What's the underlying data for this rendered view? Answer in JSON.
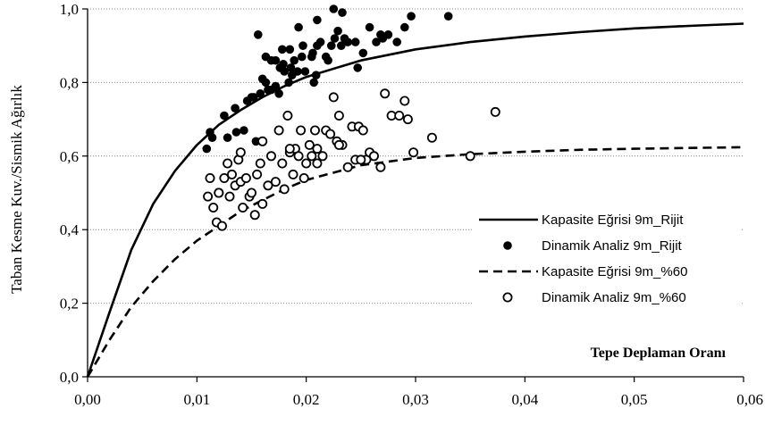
{
  "chart_data": {
    "type": "scatter",
    "title": "",
    "xlabel": "Tepe Deplaman Oranı",
    "ylabel": "Taban Kesme Kuv./Sismik Ağırlık",
    "xlim": [
      0,
      0.06
    ],
    "ylim": [
      0,
      1.0
    ],
    "x_ticks": [
      "0,00",
      "0,01",
      "0,02",
      "0,03",
      "0,04",
      "0,05",
      "0,06"
    ],
    "x_tick_values": [
      0,
      0.01,
      0.02,
      0.03,
      0.04,
      0.05,
      0.06
    ],
    "y_ticks": [
      "0,0",
      "0,2",
      "0,4",
      "0,6",
      "0,8",
      "1,0"
    ],
    "y_tick_values": [
      0,
      0.2,
      0.4,
      0.6,
      0.8,
      1.0
    ],
    "grid": "horizontal-dotted",
    "legend_position": "bottom-right",
    "series": [
      {
        "name": "Kapasite Eğrisi 9m_Rijit",
        "style": "solid-line",
        "color": "#000000",
        "x": [
          0,
          0.002,
          0.004,
          0.006,
          0.008,
          0.01,
          0.012,
          0.014,
          0.016,
          0.018,
          0.02,
          0.025,
          0.03,
          0.035,
          0.04,
          0.045,
          0.05,
          0.055,
          0.06
        ],
        "y": [
          0,
          0.175,
          0.345,
          0.47,
          0.56,
          0.63,
          0.685,
          0.725,
          0.76,
          0.79,
          0.815,
          0.86,
          0.89,
          0.91,
          0.925,
          0.937,
          0.947,
          0.954,
          0.96
        ]
      },
      {
        "name": "Dinamik Analiz 9m_Rijit",
        "style": "filled-marker",
        "color": "#000000",
        "x": [
          0.0109,
          0.0112,
          0.0125,
          0.0136,
          0.0135,
          0.0146,
          0.0154,
          0.0156,
          0.016,
          0.0163,
          0.0168,
          0.0172,
          0.0175,
          0.0179,
          0.018,
          0.0185,
          0.0187,
          0.0189,
          0.0192,
          0.0196,
          0.0197,
          0.0205,
          0.0207,
          0.021,
          0.0213,
          0.022,
          0.0223,
          0.0225,
          0.0232,
          0.0233,
          0.0238,
          0.0245,
          0.0258,
          0.0264,
          0.027,
          0.0275,
          0.0283,
          0.029,
          0.0296,
          0.033,
          0.0152,
          0.0163,
          0.0168,
          0.0176,
          0.0186,
          0.0199,
          0.0206,
          0.021,
          0.0218,
          0.0229,
          0.0235,
          0.0247,
          0.0252,
          0.0268,
          0.0165,
          0.015,
          0.0128,
          0.0114,
          0.0143,
          0.0172,
          0.0193,
          0.0158,
          0.0184,
          0.0226,
          0.0209,
          0.0178
        ],
        "y": [
          0.62,
          0.665,
          0.71,
          0.665,
          0.73,
          0.75,
          0.64,
          0.93,
          0.81,
          0.87,
          0.86,
          0.79,
          0.77,
          0.85,
          0.83,
          0.89,
          0.82,
          0.86,
          0.83,
          0.87,
          0.9,
          0.87,
          0.8,
          0.97,
          0.91,
          0.86,
          0.9,
          1.0,
          0.9,
          0.99,
          0.91,
          0.91,
          0.95,
          0.91,
          0.92,
          0.93,
          0.91,
          0.95,
          0.98,
          0.98,
          0.76,
          0.8,
          0.78,
          0.84,
          0.84,
          0.83,
          0.88,
          0.9,
          0.87,
          0.94,
          0.92,
          0.84,
          0.88,
          0.93,
          0.78,
          0.76,
          0.65,
          0.65,
          0.67,
          0.86,
          0.95,
          0.77,
          0.8,
          0.92,
          0.82,
          0.89
        ]
      },
      {
        "name": "Kapasite Eğrisi 9m_%60",
        "style": "dashed-line",
        "color": "#000000",
        "x": [
          0,
          0.002,
          0.004,
          0.006,
          0.008,
          0.01,
          0.012,
          0.014,
          0.016,
          0.018,
          0.02,
          0.025,
          0.03,
          0.035,
          0.04,
          0.045,
          0.05,
          0.055,
          0.06
        ],
        "y": [
          0,
          0.1,
          0.19,
          0.26,
          0.32,
          0.37,
          0.41,
          0.45,
          0.48,
          0.51,
          0.535,
          0.575,
          0.595,
          0.605,
          0.612,
          0.617,
          0.62,
          0.622,
          0.624
        ]
      },
      {
        "name": "Dinamik Analiz 9m_%60",
        "style": "open-marker",
        "color": "#000000",
        "x": [
          0.011,
          0.0112,
          0.0115,
          0.0118,
          0.012,
          0.0123,
          0.0125,
          0.0128,
          0.013,
          0.0132,
          0.0135,
          0.0138,
          0.014,
          0.0142,
          0.0145,
          0.0148,
          0.015,
          0.0153,
          0.0155,
          0.0158,
          0.016,
          0.0165,
          0.0168,
          0.0172,
          0.0175,
          0.0178,
          0.018,
          0.0183,
          0.0185,
          0.0188,
          0.019,
          0.0193,
          0.0195,
          0.0198,
          0.02,
          0.0203,
          0.0205,
          0.0208,
          0.021,
          0.0215,
          0.0218,
          0.0222,
          0.0225,
          0.0228,
          0.023,
          0.0233,
          0.0238,
          0.0242,
          0.0245,
          0.0248,
          0.0252,
          0.0255,
          0.0258,
          0.0262,
          0.0268,
          0.0272,
          0.0278,
          0.0285,
          0.029,
          0.0293,
          0.0298,
          0.0315,
          0.035,
          0.0373,
          0.012,
          0.014,
          0.016,
          0.0185,
          0.021,
          0.023,
          0.025
        ],
        "y": [
          0.49,
          0.54,
          0.46,
          0.42,
          0.5,
          0.41,
          0.54,
          0.58,
          0.49,
          0.55,
          0.52,
          0.59,
          0.53,
          0.46,
          0.54,
          0.49,
          0.5,
          0.44,
          0.55,
          0.58,
          0.64,
          0.52,
          0.6,
          0.53,
          0.67,
          0.58,
          0.51,
          0.71,
          0.61,
          0.55,
          0.62,
          0.6,
          0.67,
          0.54,
          0.58,
          0.63,
          0.6,
          0.67,
          0.62,
          0.6,
          0.67,
          0.66,
          0.76,
          0.64,
          0.71,
          0.63,
          0.57,
          0.68,
          0.59,
          0.68,
          0.67,
          0.59,
          0.61,
          0.6,
          0.57,
          0.77,
          0.71,
          0.71,
          0.75,
          0.7,
          0.61,
          0.65,
          0.6,
          0.72,
          0.5,
          0.61,
          0.47,
          0.62,
          0.58,
          0.63,
          0.59
        ]
      }
    ]
  }
}
